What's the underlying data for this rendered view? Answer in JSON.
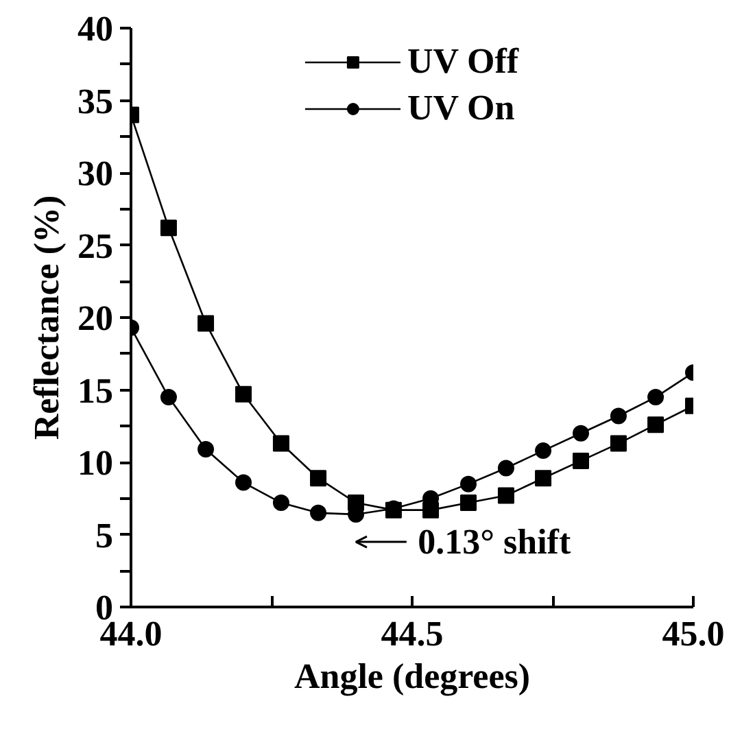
{
  "chart_data": {
    "type": "line",
    "xlabel": "Angle (degrees)",
    "ylabel": "Reflectance (%)",
    "x": [
      44.0,
      44.067,
      44.133,
      44.2,
      44.267,
      44.333,
      44.4,
      44.467,
      44.533,
      44.6,
      44.667,
      44.733,
      44.8,
      44.867,
      44.933,
      45.0
    ],
    "series": [
      {
        "name": "UV Off",
        "color": "#000000",
        "marker": "square",
        "values": [
          34.0,
          26.2,
          19.6,
          14.7,
          11.3,
          8.9,
          7.2,
          6.7,
          6.7,
          7.2,
          7.7,
          8.9,
          10.1,
          11.3,
          12.6,
          13.9
        ]
      },
      {
        "name": "UV On",
        "color": "#000000",
        "marker": "circle",
        "values": [
          19.3,
          14.5,
          10.9,
          8.6,
          7.2,
          6.5,
          6.4,
          6.8,
          7.5,
          8.5,
          9.6,
          10.8,
          12.0,
          13.2,
          14.5,
          16.2
        ]
      }
    ],
    "xlim": [
      44.0,
      45.0
    ],
    "xticks": [
      {
        "value": 44.0,
        "label": "44.0"
      },
      {
        "value": 44.25,
        "label": null
      },
      {
        "value": 44.5,
        "label": "44.5"
      },
      {
        "value": 44.75,
        "label": null
      },
      {
        "value": 45.0,
        "label": "45.0"
      }
    ],
    "ylim": [
      0,
      40
    ],
    "yticks": [
      0,
      {
        "value": 2.5,
        "label": null
      },
      5,
      {
        "value": 7.5,
        "label": null
      },
      10,
      {
        "value": 12.5,
        "label": null
      },
      15,
      {
        "value": 17.5,
        "label": null
      },
      20,
      {
        "value": 22.5,
        "label": null
      },
      25,
      {
        "value": 27.5,
        "label": null
      },
      30,
      {
        "value": 32.5,
        "label": null
      },
      35,
      {
        "value": 37.5,
        "label": null
      },
      40
    ],
    "annotations": [
      "0.13° shift"
    ],
    "legend": "top",
    "grid": false,
    "line_style": "solid"
  }
}
